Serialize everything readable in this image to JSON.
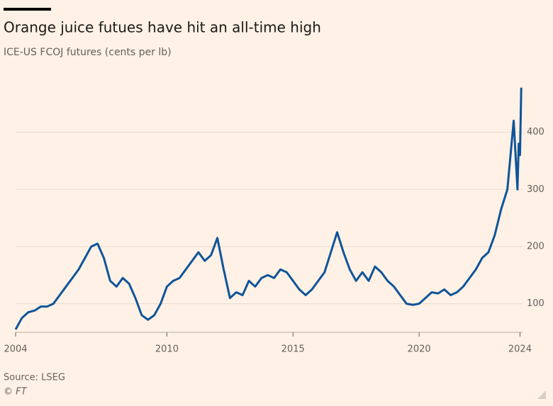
{
  "chart_data": {
    "type": "line",
    "title": "Orange juice futues have hit an all-time high",
    "subtitle": "ICE-US FCOJ futures (cents per lb)",
    "source": "Source: LSEG",
    "credit": "© FT",
    "x": [
      2004.0,
      2004.25,
      2004.5,
      2004.75,
      2005.0,
      2005.25,
      2005.5,
      2005.75,
      2006.0,
      2006.25,
      2006.5,
      2006.75,
      2007.0,
      2007.25,
      2007.5,
      2007.75,
      2008.0,
      2008.25,
      2008.5,
      2008.75,
      2009.0,
      2009.25,
      2009.5,
      2009.75,
      2010.0,
      2010.25,
      2010.5,
      2010.75,
      2011.0,
      2011.25,
      2011.5,
      2011.75,
      2012.0,
      2012.25,
      2012.5,
      2012.75,
      2013.0,
      2013.25,
      2013.5,
      2013.75,
      2014.0,
      2014.25,
      2014.5,
      2014.75,
      2015.0,
      2015.25,
      2015.5,
      2015.75,
      2016.0,
      2016.25,
      2016.5,
      2016.75,
      2017.0,
      2017.25,
      2017.5,
      2017.75,
      2018.0,
      2018.25,
      2018.5,
      2018.75,
      2019.0,
      2019.25,
      2019.5,
      2019.75,
      2020.0,
      2020.25,
      2020.5,
      2020.75,
      2021.0,
      2021.25,
      2021.5,
      2021.75,
      2022.0,
      2022.25,
      2022.5,
      2022.75,
      2023.0,
      2023.25,
      2023.5,
      2023.75,
      2023.85,
      2023.9,
      2023.95,
      2024.0,
      2024.05
    ],
    "series": [
      {
        "name": "FCOJ futures",
        "color": "#0f5499",
        "values": [
          55,
          75,
          85,
          88,
          95,
          95,
          100,
          115,
          130,
          145,
          160,
          180,
          200,
          205,
          180,
          140,
          130,
          145,
          135,
          110,
          80,
          72,
          80,
          100,
          130,
          140,
          145,
          160,
          175,
          190,
          175,
          185,
          215,
          160,
          110,
          120,
          115,
          140,
          130,
          145,
          150,
          145,
          160,
          155,
          140,
          125,
          115,
          125,
          140,
          155,
          190,
          225,
          190,
          160,
          140,
          155,
          140,
          165,
          155,
          140,
          130,
          115,
          100,
          98,
          100,
          110,
          120,
          118,
          125,
          115,
          120,
          130,
          145,
          160,
          180,
          190,
          220,
          265,
          300,
          420,
          340,
          300,
          380,
          360,
          478
        ]
      }
    ],
    "xlim": [
      2004,
      2024.1
    ],
    "xticks": [
      2004,
      2010,
      2015,
      2020,
      2024
    ],
    "ylim": [
      50,
      480
    ],
    "yticks": [
      100,
      200,
      300,
      400
    ],
    "grid": true
  }
}
